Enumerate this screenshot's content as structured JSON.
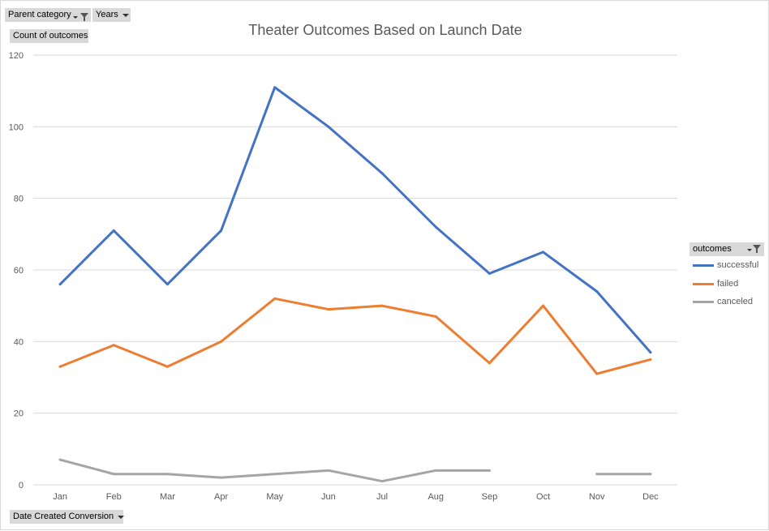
{
  "filters": {
    "parent_category": "Parent category",
    "years": "Years",
    "value_field": "Count of outcomes",
    "axis_field": "Date Created Conversion"
  },
  "legend": {
    "header": "outcomes"
  },
  "colors": {
    "successful": "#4472c4",
    "failed": "#ed7d31",
    "canceled": "#a5a5a5"
  },
  "icons": [
    "filter-funnel-icon",
    "dropdown-arrow-icon"
  ],
  "chart_data": {
    "type": "line",
    "title": "Theater Outcomes Based on Launch Date",
    "xlabel": "",
    "ylabel": "",
    "categories": [
      "Jan",
      "Feb",
      "Mar",
      "Apr",
      "May",
      "Jun",
      "Jul",
      "Aug",
      "Sep",
      "Oct",
      "Nov",
      "Dec"
    ],
    "ylim": [
      0,
      120
    ],
    "yticks": [
      0,
      20,
      40,
      60,
      80,
      100,
      120
    ],
    "grid": true,
    "legend_position": "right",
    "series": [
      {
        "name": "successful",
        "values": [
          56,
          71,
          56,
          71,
          111,
          100,
          87,
          72,
          59,
          65,
          54,
          37
        ]
      },
      {
        "name": "failed",
        "values": [
          33,
          39,
          33,
          40,
          52,
          49,
          50,
          47,
          34,
          50,
          31,
          35
        ]
      },
      {
        "name": "canceled",
        "values": [
          7,
          3,
          3,
          2,
          3,
          4,
          1,
          4,
          4,
          null,
          3,
          3
        ]
      }
    ]
  }
}
